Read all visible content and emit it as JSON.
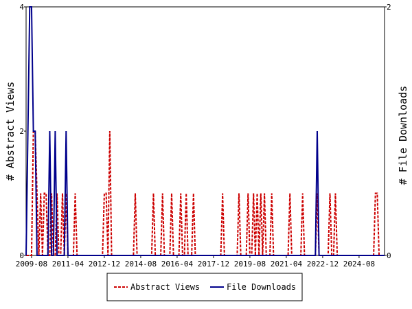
{
  "chart_data": {
    "type": "line",
    "x_start": "2009-05",
    "x_end": "2025-10",
    "x_ticks": [
      "2009-08",
      "2011-04",
      "2012-12",
      "2014-08",
      "2016-04",
      "2017-12",
      "2019-08",
      "2021-04",
      "2022-12",
      "2024-08"
    ],
    "y_left": {
      "label": "# Abstract Views",
      "ticks": [
        "0",
        "2",
        "4"
      ],
      "ylim": [
        0,
        4
      ]
    },
    "y_right": {
      "label": "# File Downloads",
      "ticks": [
        "0",
        "2"
      ],
      "ylim": [
        0,
        2
      ]
    },
    "legend": {
      "placement": "bottom",
      "entries": [
        "Abstract Views",
        "File Downloads"
      ]
    },
    "series": [
      {
        "name": "Abstract Views",
        "axis": "left",
        "color": "#cc0000",
        "dash": true,
        "points": [
          [
            "2009-09",
            2
          ],
          [
            "2009-10",
            2
          ],
          [
            "2009-11",
            1
          ],
          [
            "2010-01",
            1
          ],
          [
            "2010-03",
            1
          ],
          [
            "2010-04",
            1
          ],
          [
            "2010-07",
            1
          ],
          [
            "2010-10",
            1
          ],
          [
            "2011-01",
            1
          ],
          [
            "2011-03",
            1
          ],
          [
            "2011-08",
            1
          ],
          [
            "2012-12",
            1
          ],
          [
            "2013-01",
            1
          ],
          [
            "2013-03",
            2
          ],
          [
            "2014-05",
            1
          ],
          [
            "2015-03",
            1
          ],
          [
            "2015-08",
            1
          ],
          [
            "2016-01",
            1
          ],
          [
            "2016-06",
            1
          ],
          [
            "2016-09",
            1
          ],
          [
            "2017-01",
            1
          ],
          [
            "2018-05",
            1
          ],
          [
            "2019-02",
            1
          ],
          [
            "2019-07",
            1
          ],
          [
            "2019-10",
            1
          ],
          [
            "2019-12",
            1
          ],
          [
            "2020-02",
            1
          ],
          [
            "2020-04",
            1
          ],
          [
            "2020-08",
            1
          ],
          [
            "2021-06",
            1
          ],
          [
            "2022-01",
            1
          ],
          [
            "2022-09",
            1
          ],
          [
            "2023-04",
            1
          ],
          [
            "2023-07",
            1
          ],
          [
            "2025-05",
            1
          ],
          [
            "2025-06",
            1
          ]
        ]
      },
      {
        "name": "File Downloads",
        "axis": "right",
        "color": "#00008b",
        "dash": false,
        "points": [
          [
            "2009-06",
            1
          ],
          [
            "2009-07",
            2
          ],
          [
            "2009-08",
            2
          ],
          [
            "2009-09",
            1
          ],
          [
            "2009-10",
            1
          ],
          [
            "2010-06",
            1
          ],
          [
            "2010-09",
            1
          ],
          [
            "2011-03",
            1
          ],
          [
            "2022-09",
            1
          ]
        ]
      }
    ]
  }
}
